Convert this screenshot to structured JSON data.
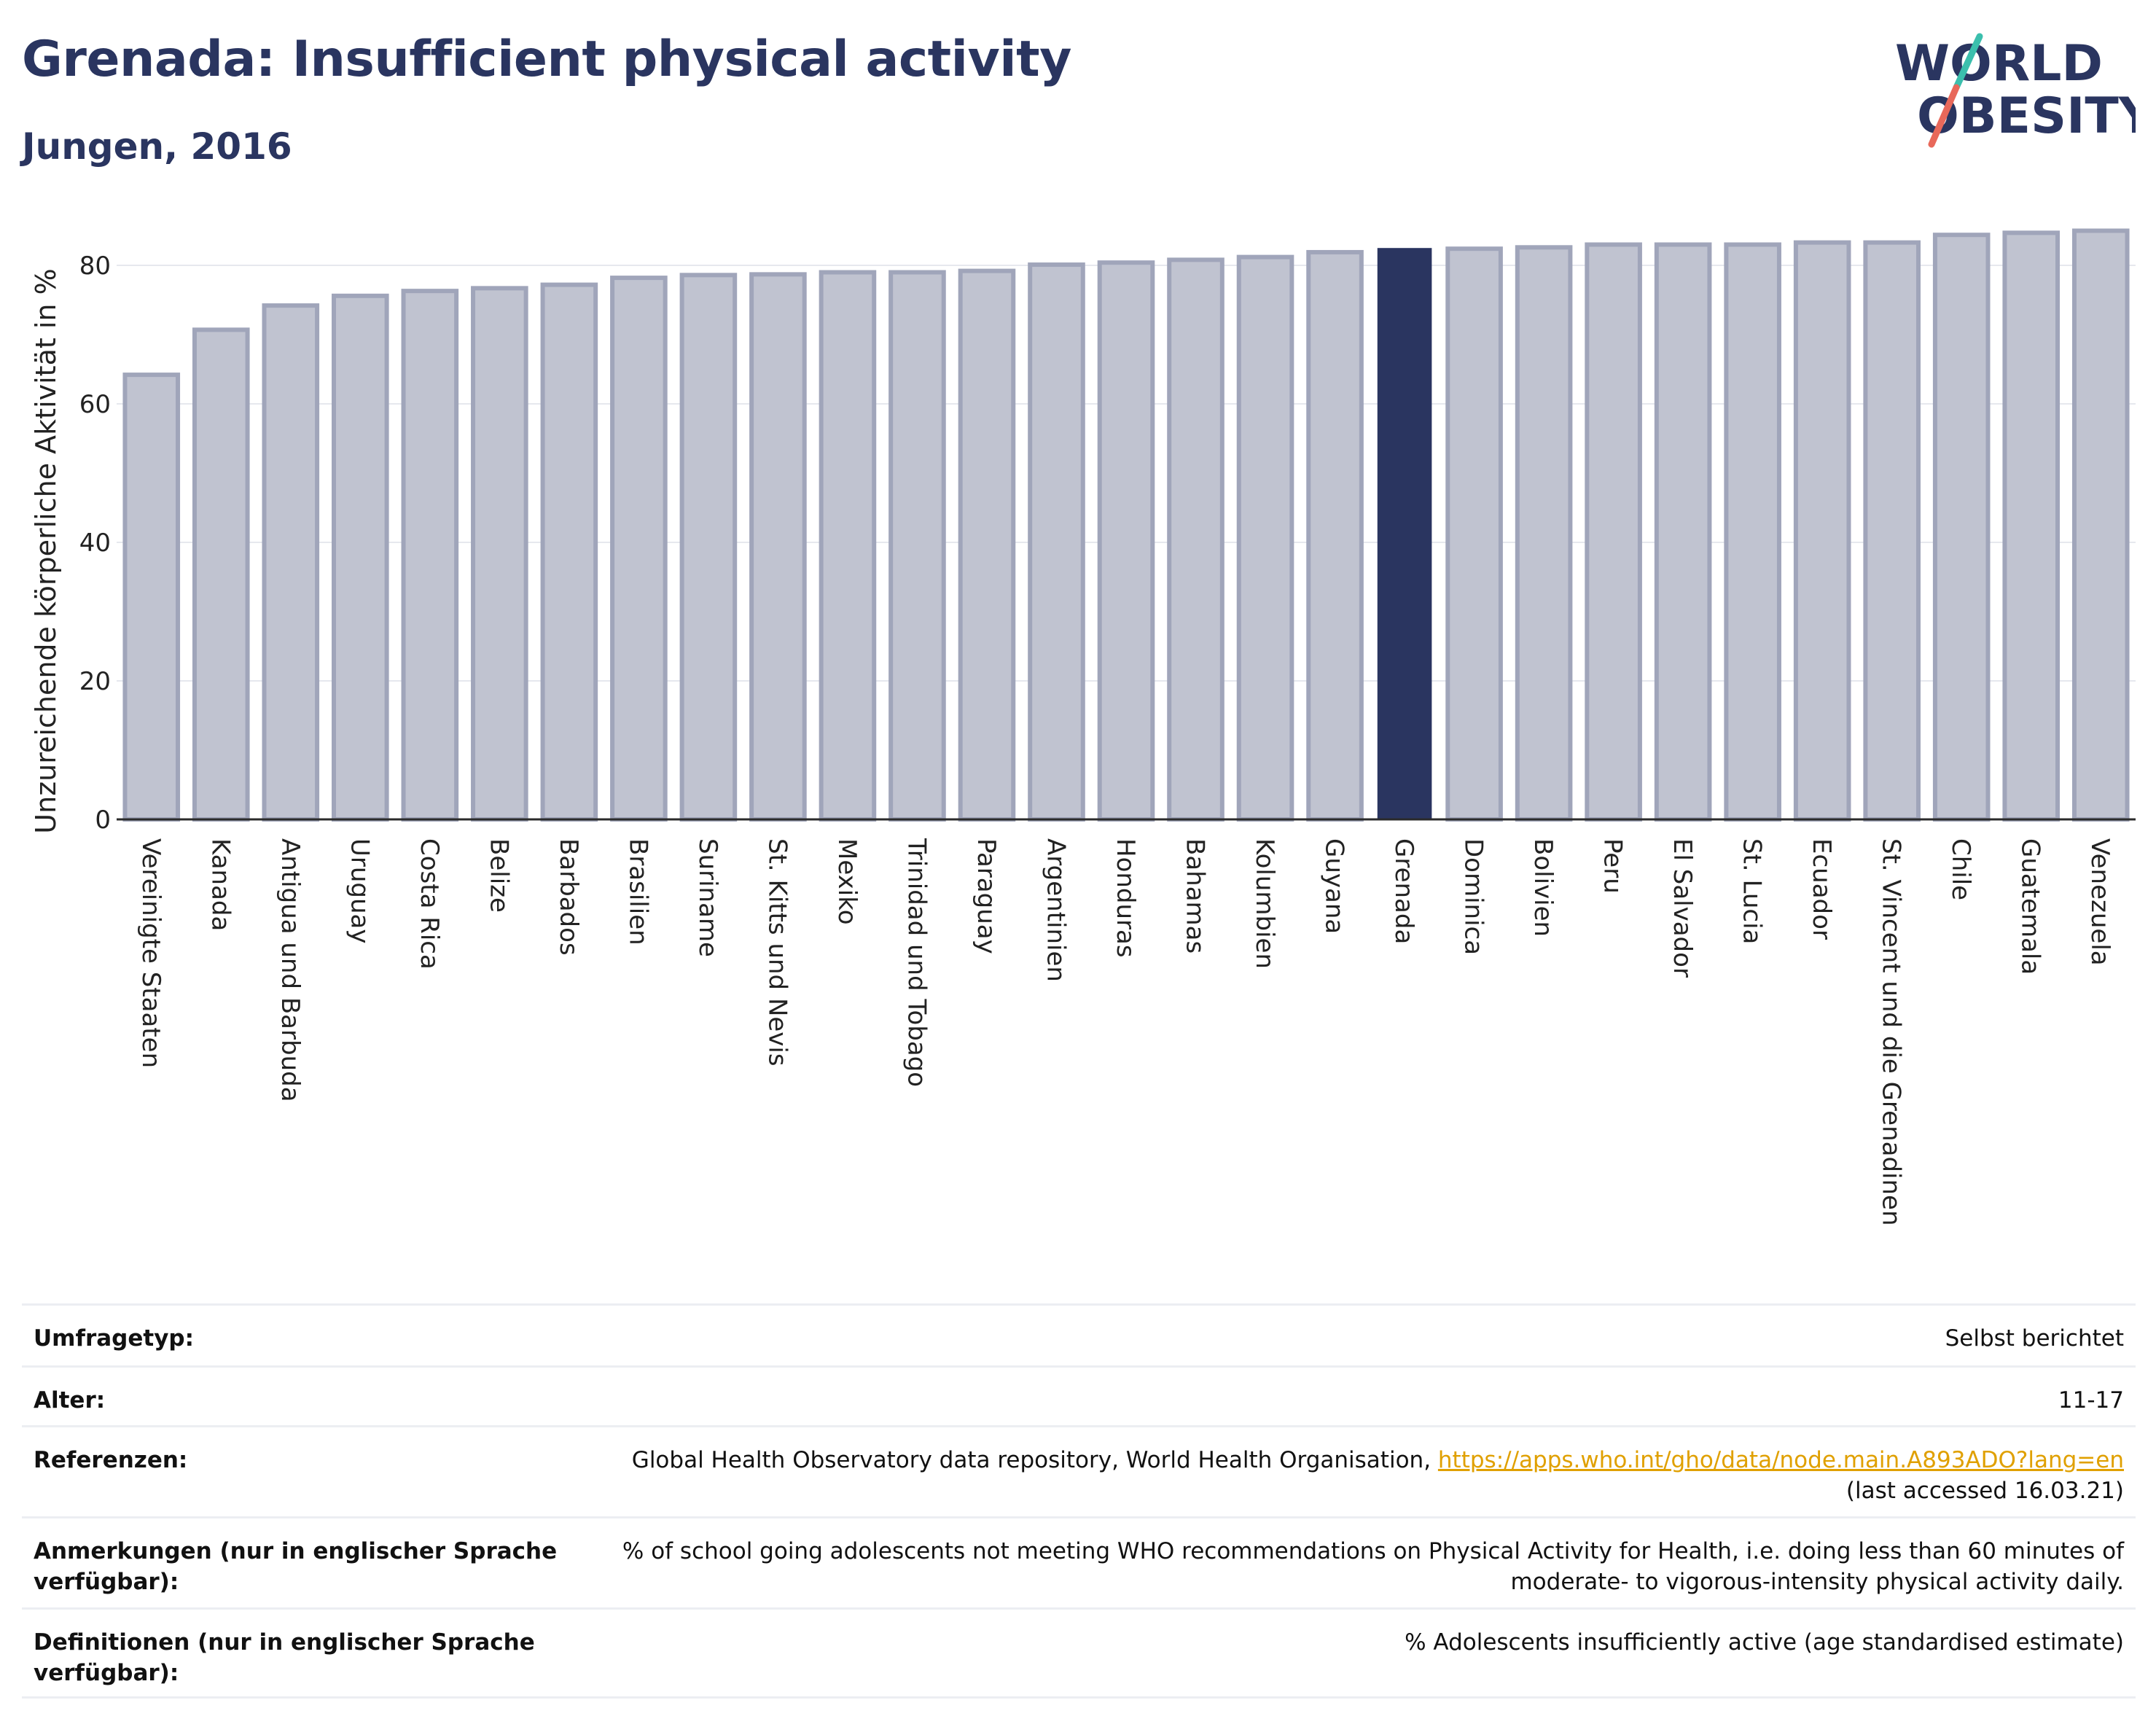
{
  "header": {
    "title": "Grenada: Insufficient physical activity",
    "subtitle": "Jungen, 2016"
  },
  "logo": {
    "line1": "WORLD",
    "line2": "OBESITY"
  },
  "colors": {
    "highlight": "#2a3560",
    "bar_fill": "#c0c3d0",
    "bar_border": "#a0a5ba",
    "title": "#2a3560",
    "link": "#e0a000",
    "logo_slash_teal": "#3bbfad",
    "logo_slash_coral": "#e8685a"
  },
  "chart_data": {
    "type": "bar",
    "ylabel": "Unzureichende körperliche Aktivität in %",
    "xlabel": "",
    "ylim": [
      0,
      88
    ],
    "yticks": [
      0,
      20,
      40,
      60,
      80
    ],
    "grid": true,
    "highlight_category": "Grenada",
    "categories": [
      "Vereinigte Staaten",
      "Kanada",
      "Antigua und Barbuda",
      "Uruguay",
      "Costa Rica",
      "Belize",
      "Barbados",
      "Brasilien",
      "Suriname",
      "St. Kitts und Nevis",
      "Mexiko",
      "Trinidad und Tobago",
      "Paraguay",
      "Argentinien",
      "Honduras",
      "Bahamas",
      "Kolumbien",
      "Guyana",
      "Grenada",
      "Dominica",
      "Bolivien",
      "Peru",
      "El Salvador",
      "St. Lucia",
      "Ecuador",
      "St. Vincent und die Grenadinen",
      "Chile",
      "Guatemala",
      "Venezuela"
    ],
    "values": [
      64.2,
      70.7,
      74.2,
      75.6,
      76.3,
      76.7,
      77.2,
      78.2,
      78.6,
      78.7,
      79.0,
      79.0,
      79.2,
      80.1,
      80.4,
      80.8,
      81.2,
      81.9,
      82.4,
      82.4,
      82.6,
      83.0,
      83.0,
      83.0,
      83.3,
      83.3,
      84.4,
      84.7,
      85.0
    ]
  },
  "info": [
    {
      "label": "Umfragetyp:",
      "value": "Selbst berichtet"
    },
    {
      "label": "Alter:",
      "value": "11-17"
    },
    {
      "label": "Referenzen:",
      "value": "Global Health Observatory data repository, World Health Organisation, ",
      "link": "https://apps.who.int/gho/data/node.main.A893ADO?lang=en",
      "value_after": "(last accessed 16.03.21)"
    },
    {
      "label": "Anmerkungen (nur in englischer Sprache verfügbar):",
      "value": "% of school going adolescents not meeting WHO recommendations on Physical Activity for Health, i.e. doing less than 60 minutes of moderate- to vigorous-intensity physical activity daily."
    },
    {
      "label": "Definitionen (nur in englischer Sprache verfügbar):",
      "value": "% Adolescents insufficiently active (age standardised estimate)"
    }
  ]
}
